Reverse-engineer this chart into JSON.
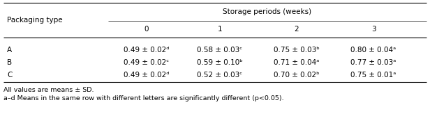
{
  "col_header_top": "Storage periods (weeks)",
  "col_header_sub": [
    "0",
    "1",
    "2",
    "3"
  ],
  "row_header_label": "Packaging type",
  "rows": [
    "A",
    "B",
    "C"
  ],
  "cells": [
    [
      "0.49 ± 0.02ᵈ",
      "0.58 ± 0.03ᶜ",
      "0.75 ± 0.03ᵇ",
      "0.80 ± 0.04ᵃ"
    ],
    [
      "0.49 ± 0.02ᶜ",
      "0.59 ± 0.10ᵇ",
      "0.71 ± 0.04ᵃ",
      "0.77 ± 0.03ᵃ"
    ],
    [
      "0.49 ± 0.02ᵈ",
      "0.52 ± 0.03ᶜ",
      "0.70 ± 0.02ᵇ",
      "0.75 ± 0.01ᵃ"
    ]
  ],
  "footnote1": "All values are means ± SD.",
  "footnote2": "a–d Means in the same row with different letters are significantly different (p<0.05).",
  "font_size": 7.5,
  "font_size_footnote": 6.8,
  "fig_width": 6.16,
  "fig_height": 1.64,
  "dpi": 100
}
